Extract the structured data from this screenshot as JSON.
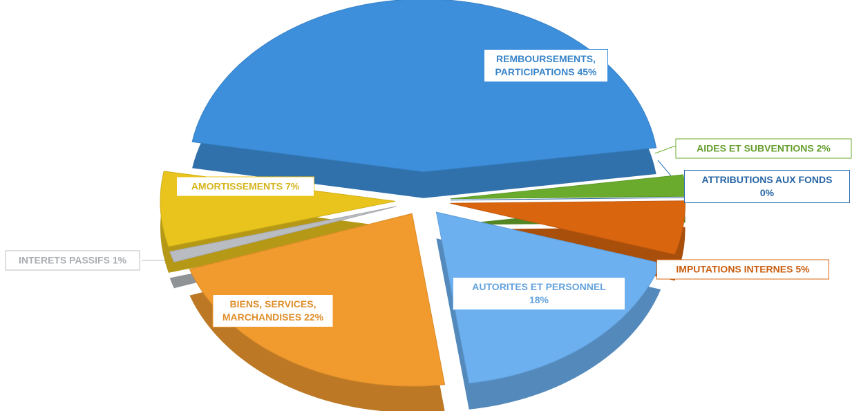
{
  "chart_data": {
    "type": "pie",
    "categories": [
      "REMBOURSEMENTS, PARTICIPATIONS",
      "AIDES ET SUBVENTIONS",
      "ATTRIBUTIONS AUX FONDS",
      "IMPUTATIONS INTERNES",
      "AUTORITES ET PERSONNEL",
      "BIENS, SERVICES, MARCHANDISES",
      "INTERETS PASSIFS",
      "AMORTISSEMENTS"
    ],
    "values": [
      45,
      2,
      0,
      5,
      18,
      22,
      1,
      7
    ],
    "value_labels": [
      "45%",
      "2%",
      "0%",
      "5%",
      "18%",
      "22%",
      "1%",
      "7%"
    ],
    "colors": [
      "#3d8fdb",
      "#6aab2e",
      "#2a6db3",
      "#d9650f",
      "#6cb0f0",
      "#f19a2e",
      "#b9bcc0",
      "#e8c41c"
    ]
  }
}
